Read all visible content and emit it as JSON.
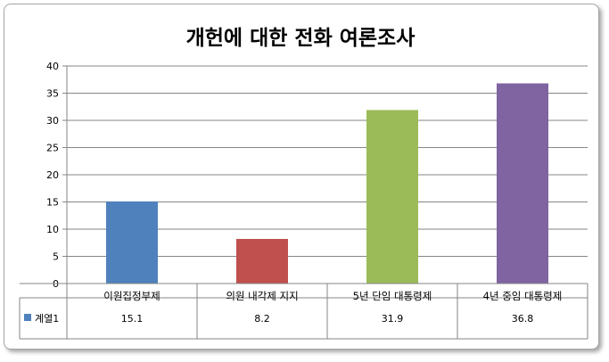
{
  "chart_data": {
    "type": "bar",
    "title": "개헌에 대한 전화 여론조사",
    "categories": [
      "이원집정부제",
      "의원 내각제 지지",
      "5년 단임 대통령제",
      "4년 중임 대통령제"
    ],
    "series": [
      {
        "name": "계열1",
        "values": [
          15.1,
          8.2,
          31.9,
          36.8
        ]
      }
    ],
    "bar_colors": [
      "#4f81bd",
      "#c0504d",
      "#9bbb59",
      "#8064a2"
    ],
    "ylim": [
      0,
      40
    ],
    "yticks": [
      0,
      5,
      10,
      15,
      20,
      25,
      30,
      35,
      40
    ],
    "ytick_labels": [
      "0",
      "5",
      "10",
      "15",
      "20",
      "25",
      "30",
      "35",
      "40"
    ],
    "grid": true,
    "data_table": true,
    "legend_key_color": "#4f81bd"
  }
}
